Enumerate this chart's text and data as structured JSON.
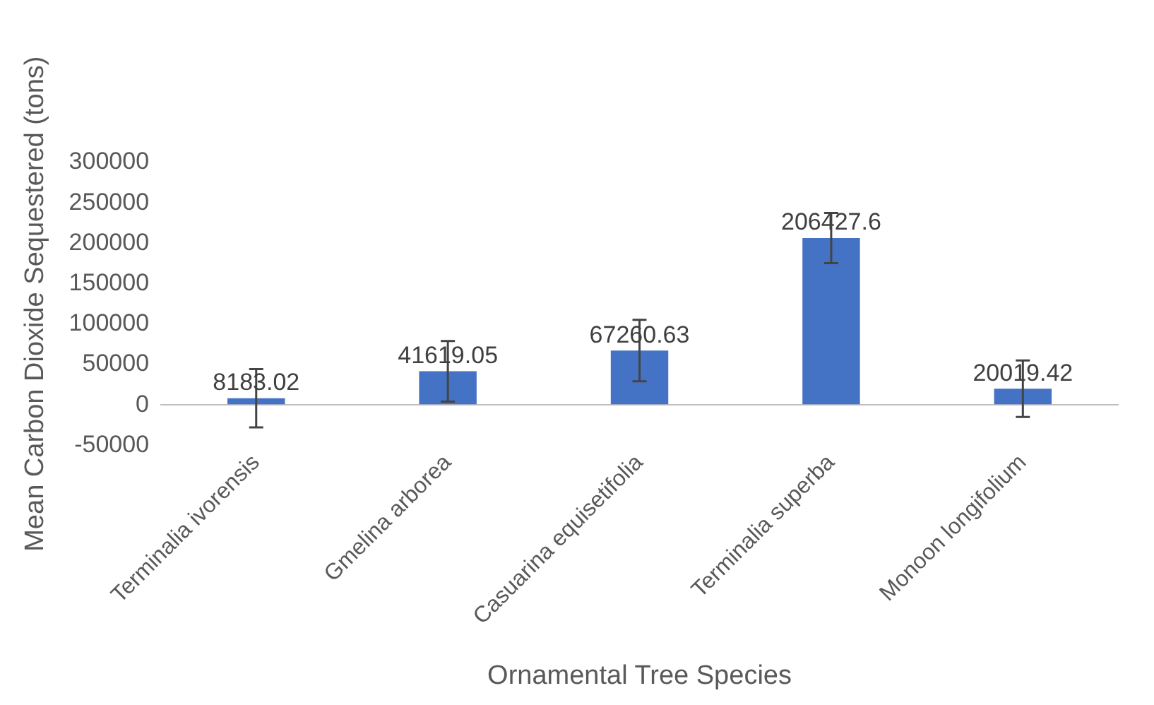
{
  "chart_data": {
    "type": "bar",
    "xlabel": "Ornamental Tree Species",
    "ylabel": "Mean Carbon Dioxide Sequestered (tons)",
    "categories": [
      "Terminalia ivorensis",
      "Gmelina arborea",
      "Casuarina equisetifolia",
      "Terminalia superba",
      "Monoon longifolium"
    ],
    "values": [
      8183.02,
      41619.05,
      67260.63,
      206427.6,
      20019.42
    ],
    "errors": [
      36000,
      37500,
      38000,
      31000,
      35000
    ],
    "color": "#4472c4",
    "ylim": [
      -50000,
      300000
    ],
    "yticks": [
      -50000,
      0,
      50000,
      100000,
      150000,
      200000,
      250000,
      300000
    ],
    "grid": false,
    "data_labels": true
  }
}
